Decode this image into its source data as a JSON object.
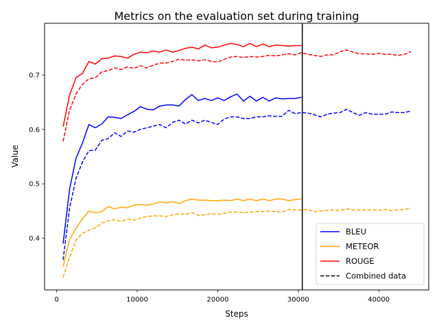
{
  "chart_data": {
    "type": "line",
    "title": "Metrics on the evaluation set during training",
    "xlabel": "Steps",
    "ylabel": "Value",
    "xlim": [
      -1500,
      46200
    ],
    "ylim": [
      0.305,
      0.795
    ],
    "xticks": [
      0,
      10000,
      20000,
      30000,
      40000
    ],
    "xtick_labels": [
      "0",
      "10000",
      "20000",
      "30000",
      "40000"
    ],
    "yticks": [
      0.4,
      0.5,
      0.6,
      0.7
    ],
    "ytick_labels": [
      "0.4",
      "0.5",
      "0.6",
      "0.7"
    ],
    "vline_x": 30500,
    "legend_position": "lower-right",
    "legend": [
      {
        "label": "BLEU",
        "color": "#0000ff",
        "style": "solid"
      },
      {
        "label": "METEOR",
        "color": "#ffa500",
        "style": "solid"
      },
      {
        "label": "ROUGE",
        "color": "#ff0000",
        "style": "solid"
      },
      {
        "label": "Combined data",
        "color": "#000000",
        "style": "dashed"
      }
    ],
    "series": [
      {
        "name": "BLEU",
        "color": "#0000ff",
        "style": "solid",
        "x": [
          800,
          1600,
          2400,
          3200,
          4000,
          4800,
          5600,
          6400,
          7200,
          8000,
          8800,
          9600,
          10400,
          11200,
          12000,
          12800,
          13600,
          14400,
          15200,
          16000,
          16800,
          17600,
          18400,
          19200,
          20000,
          20800,
          21600,
          22400,
          23200,
          24000,
          24800,
          25600,
          26400,
          27200,
          28000,
          28800,
          29600,
          30400
        ],
        "y": [
          0.39,
          0.49,
          0.547,
          0.575,
          0.609,
          0.603,
          0.61,
          0.623,
          0.622,
          0.62,
          0.627,
          0.633,
          0.642,
          0.637,
          0.636,
          0.643,
          0.645,
          0.645,
          0.643,
          0.655,
          0.664,
          0.653,
          0.657,
          0.653,
          0.658,
          0.653,
          0.66,
          0.665,
          0.652,
          0.661,
          0.652,
          0.659,
          0.652,
          0.658,
          0.656,
          0.657,
          0.657,
          0.659
        ]
      },
      {
        "name": "METEOR",
        "color": "#ffa500",
        "style": "solid",
        "x": [
          800,
          1600,
          2400,
          3200,
          4000,
          4800,
          5600,
          6400,
          7200,
          8000,
          8800,
          9600,
          10400,
          11200,
          12000,
          12800,
          13600,
          14400,
          15200,
          16000,
          16800,
          17600,
          18400,
          19200,
          20000,
          20800,
          21600,
          22400,
          23200,
          24000,
          24800,
          25600,
          26400,
          27200,
          28000,
          28800,
          29600,
          30400
        ],
        "y": [
          0.348,
          0.398,
          0.418,
          0.436,
          0.45,
          0.447,
          0.449,
          0.458,
          0.454,
          0.457,
          0.456,
          0.461,
          0.462,
          0.461,
          0.463,
          0.467,
          0.465,
          0.467,
          0.464,
          0.469,
          0.472,
          0.47,
          0.47,
          0.469,
          0.469,
          0.47,
          0.469,
          0.472,
          0.469,
          0.472,
          0.469,
          0.472,
          0.469,
          0.472,
          0.472,
          0.469,
          0.471,
          0.472
        ]
      },
      {
        "name": "ROUGE",
        "color": "#ff0000",
        "style": "solid",
        "x": [
          800,
          1600,
          2400,
          3200,
          4000,
          4800,
          5600,
          6400,
          7200,
          8000,
          8800,
          9600,
          10400,
          11200,
          12000,
          12800,
          13600,
          14400,
          15200,
          16000,
          16800,
          17600,
          18400,
          19200,
          20000,
          20800,
          21600,
          22400,
          23200,
          24000,
          24800,
          25600,
          26400,
          27200,
          28000,
          28800,
          29600,
          30400
        ],
        "y": [
          0.605,
          0.663,
          0.695,
          0.703,
          0.725,
          0.72,
          0.73,
          0.731,
          0.735,
          0.734,
          0.731,
          0.738,
          0.742,
          0.741,
          0.744,
          0.742,
          0.746,
          0.742,
          0.745,
          0.749,
          0.751,
          0.748,
          0.755,
          0.75,
          0.751,
          0.755,
          0.758,
          0.756,
          0.752,
          0.758,
          0.752,
          0.757,
          0.752,
          0.755,
          0.754,
          0.753,
          0.754,
          0.754
        ]
      },
      {
        "name": "BLEU (Combined data)",
        "color": "#0000ff",
        "style": "dashed",
        "x": [
          800,
          1600,
          2400,
          3200,
          4000,
          4800,
          5600,
          6400,
          7200,
          8000,
          8800,
          9600,
          10400,
          11200,
          12000,
          12800,
          13600,
          14400,
          15200,
          16000,
          16800,
          17600,
          18400,
          19200,
          20000,
          20800,
          21600,
          22400,
          23200,
          24000,
          24800,
          25600,
          26400,
          27200,
          28000,
          28800,
          29600,
          30400,
          31200,
          32000,
          32800,
          33600,
          34400,
          35200,
          36000,
          36800,
          37600,
          38400,
          39200,
          40000,
          40800,
          41600,
          42400,
          43200,
          44000
        ],
        "y": [
          0.36,
          0.455,
          0.51,
          0.54,
          0.561,
          0.562,
          0.58,
          0.583,
          0.594,
          0.587,
          0.597,
          0.595,
          0.6,
          0.603,
          0.606,
          0.609,
          0.603,
          0.613,
          0.617,
          0.61,
          0.617,
          0.612,
          0.617,
          0.613,
          0.609,
          0.619,
          0.623,
          0.623,
          0.62,
          0.62,
          0.623,
          0.623,
          0.625,
          0.624,
          0.624,
          0.635,
          0.629,
          0.631,
          0.63,
          0.627,
          0.623,
          0.628,
          0.63,
          0.631,
          0.637,
          0.631,
          0.626,
          0.631,
          0.628,
          0.628,
          0.628,
          0.632,
          0.631,
          0.631,
          0.634
        ]
      },
      {
        "name": "METEOR (Combined data)",
        "color": "#ffa500",
        "style": "dashed",
        "x": [
          800,
          1600,
          2400,
          3200,
          4000,
          4800,
          5600,
          6400,
          7200,
          8000,
          8800,
          9600,
          10400,
          11200,
          12000,
          12800,
          13600,
          14400,
          15200,
          16000,
          16800,
          17600,
          18400,
          19200,
          20000,
          20800,
          21600,
          22400,
          23200,
          24000,
          24800,
          25600,
          26400,
          27200,
          28000,
          28800,
          29600,
          30400,
          31200,
          32000,
          32800,
          33600,
          34400,
          35200,
          36000,
          36800,
          37600,
          38400,
          39200,
          40000,
          40800,
          41600,
          42400,
          43200,
          44000
        ],
        "y": [
          0.328,
          0.365,
          0.397,
          0.409,
          0.415,
          0.419,
          0.428,
          0.432,
          0.434,
          0.431,
          0.435,
          0.433,
          0.437,
          0.44,
          0.441,
          0.441,
          0.44,
          0.443,
          0.445,
          0.444,
          0.447,
          0.442,
          0.443,
          0.445,
          0.444,
          0.446,
          0.448,
          0.448,
          0.447,
          0.448,
          0.449,
          0.449,
          0.45,
          0.449,
          0.448,
          0.453,
          0.452,
          0.452,
          0.453,
          0.449,
          0.45,
          0.451,
          0.452,
          0.451,
          0.454,
          0.452,
          0.452,
          0.452,
          0.452,
          0.451,
          0.453,
          0.451,
          0.452,
          0.453,
          0.455
        ]
      },
      {
        "name": "ROUGE (Combined data)",
        "color": "#ff0000",
        "style": "dashed",
        "x": [
          800,
          1600,
          2400,
          3200,
          4000,
          4800,
          5600,
          6400,
          7200,
          8000,
          8800,
          9600,
          10400,
          11200,
          12000,
          12800,
          13600,
          14400,
          15200,
          16000,
          16800,
          17600,
          18400,
          19200,
          20000,
          20800,
          21600,
          22400,
          23200,
          24000,
          24800,
          25600,
          26400,
          27200,
          28000,
          28800,
          29600,
          30400,
          31200,
          32000,
          32800,
          33600,
          34400,
          35200,
          36000,
          36800,
          37600,
          38400,
          39200,
          40000,
          40800,
          41600,
          42400,
          43200,
          44000
        ],
        "y": [
          0.578,
          0.635,
          0.665,
          0.683,
          0.693,
          0.695,
          0.706,
          0.708,
          0.713,
          0.71,
          0.715,
          0.712,
          0.717,
          0.713,
          0.718,
          0.722,
          0.722,
          0.725,
          0.729,
          0.727,
          0.728,
          0.726,
          0.728,
          0.725,
          0.724,
          0.729,
          0.733,
          0.734,
          0.732,
          0.734,
          0.733,
          0.734,
          0.736,
          0.735,
          0.737,
          0.739,
          0.737,
          0.741,
          0.738,
          0.736,
          0.734,
          0.737,
          0.737,
          0.743,
          0.746,
          0.742,
          0.739,
          0.739,
          0.738,
          0.74,
          0.738,
          0.738,
          0.736,
          0.738,
          0.743
        ]
      }
    ]
  }
}
